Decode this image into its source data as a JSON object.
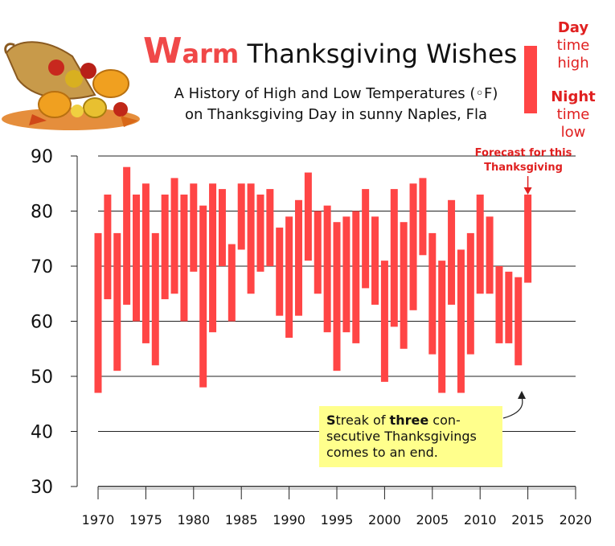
{
  "header": {
    "title_first_letter": "W",
    "title_rest_of_warm": "arm",
    "title_rest": " Thanksgiving Wishes",
    "subtitle_line1": "A History of High and Low Temperatures (◦F)",
    "subtitle_line2": "on Thanksgiving Day in sunny Naples, Fla"
  },
  "legend": {
    "day_label": "Day",
    "day_desc_1": "time",
    "day_desc_2": "high",
    "night_label": "Night",
    "night_desc_1": "time",
    "night_desc_2": "low"
  },
  "annotations": {
    "forecast_line1": "Forecast for this",
    "forecast_line2": "Thanksgiving",
    "note_s": "S",
    "note_part1": "treak of ",
    "note_bold": "three",
    "note_part2": " con-",
    "note_line2": "secutive Thanksgivings",
    "note_line3": "comes to an end."
  },
  "colors": {
    "bar": "#ff4545",
    "note_bg": "#ffff8c",
    "accent": "#f04848"
  },
  "chart_data": {
    "type": "bar",
    "subtype": "floating-range",
    "title": "Warm Thanksgiving Wishes",
    "subtitle": "A History of High and Low Temperatures (◦F) on Thanksgiving Day in sunny Naples, Fla",
    "ylim": [
      30,
      90
    ],
    "yticks": [
      30,
      40,
      50,
      60,
      70,
      80,
      90
    ],
    "xlim": [
      1970,
      2020
    ],
    "xticks": [
      1970,
      1975,
      1980,
      1985,
      1990,
      1995,
      2000,
      2005,
      2010,
      2015,
      2020
    ],
    "x": [
      1970,
      1971,
      1972,
      1973,
      1974,
      1975,
      1976,
      1977,
      1978,
      1979,
      1980,
      1981,
      1982,
      1983,
      1984,
      1985,
      1986,
      1987,
      1988,
      1989,
      1990,
      1991,
      1992,
      1993,
      1994,
      1995,
      1996,
      1997,
      1998,
      1999,
      2000,
      2001,
      2002,
      2003,
      2004,
      2005,
      2006,
      2007,
      2008,
      2009,
      2010,
      2011,
      2012,
      2013,
      2014,
      2015
    ],
    "series": [
      {
        "name": "Day time high",
        "values": [
          76,
          83,
          76,
          88,
          83,
          85,
          76,
          83,
          86,
          83,
          85,
          81,
          85,
          84,
          74,
          85,
          85,
          83,
          84,
          77,
          79,
          82,
          87,
          80,
          81,
          78,
          79,
          80,
          84,
          79,
          71,
          84,
          78,
          85,
          86,
          76,
          71,
          82,
          73,
          76,
          83,
          79,
          70,
          69,
          68,
          83
        ]
      },
      {
        "name": "Night time low",
        "values": [
          47,
          64,
          51,
          63,
          60,
          56,
          52,
          64,
          65,
          60,
          69,
          48,
          58,
          70,
          60,
          73,
          65,
          69,
          70,
          61,
          57,
          61,
          71,
          65,
          58,
          51,
          58,
          56,
          66,
          63,
          49,
          59,
          55,
          62,
          72,
          54,
          47,
          63,
          47,
          54,
          65,
          65,
          56,
          56,
          52,
          67
        ]
      }
    ]
  }
}
